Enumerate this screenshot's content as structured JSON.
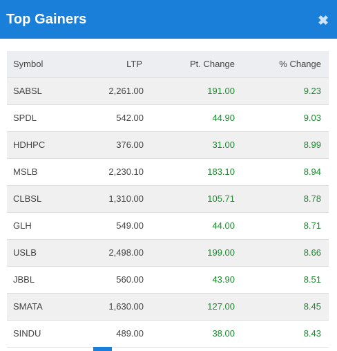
{
  "dialog": {
    "title": "Top Gainers",
    "close_glyph": "✖"
  },
  "columns": [
    "Symbol",
    "LTP",
    "Pt. Change",
    "% Change"
  ],
  "rows": [
    {
      "symbol": "SABSL",
      "ltp": "2,261.00",
      "pt_change": "191.00",
      "pct_change": "9.23"
    },
    {
      "symbol": "SPDL",
      "ltp": "542.00",
      "pt_change": "44.90",
      "pct_change": "9.03"
    },
    {
      "symbol": "HDHPC",
      "ltp": "376.00",
      "pt_change": "31.00",
      "pct_change": "8.99"
    },
    {
      "symbol": "MSLB",
      "ltp": "2,230.10",
      "pt_change": "183.10",
      "pct_change": "8.94"
    },
    {
      "symbol": "CLBSL",
      "ltp": "1,310.00",
      "pt_change": "105.71",
      "pct_change": "8.78"
    },
    {
      "symbol": "GLH",
      "ltp": "549.00",
      "pt_change": "44.00",
      "pct_change": "8.71"
    },
    {
      "symbol": "USLB",
      "ltp": "2,498.00",
      "pt_change": "199.00",
      "pct_change": "8.66"
    },
    {
      "symbol": "JBBL",
      "ltp": "560.00",
      "pt_change": "43.90",
      "pct_change": "8.51"
    },
    {
      "symbol": "SMATA",
      "ltp": "1,630.00",
      "pt_change": "127.00",
      "pct_change": "8.45"
    },
    {
      "symbol": "SINDU",
      "ltp": "489.00",
      "pt_change": "38.00",
      "pct_change": "8.43"
    }
  ],
  "colors": {
    "accent": "#1a7fd8",
    "positive": "#1a8a2e",
    "header_bg": "#eceef1"
  }
}
